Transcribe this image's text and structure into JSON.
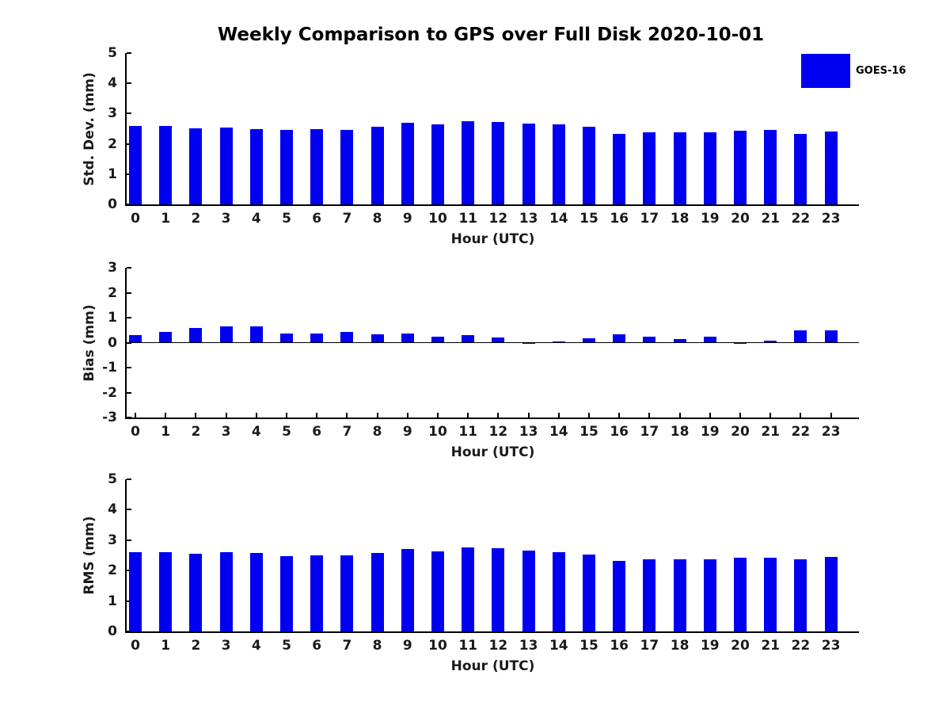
{
  "title": "Weekly Comparison to GPS over Full Disk 2020-10-01",
  "legend": {
    "label": "GOES-16",
    "position": "top-right",
    "color": "#0000f0"
  },
  "colors": {
    "bar": "#0000f0",
    "axis": "#000000",
    "text": "#1a1a1a",
    "background": "#ffffff"
  },
  "chart_data": [
    {
      "type": "bar",
      "name": "std-dev",
      "series_name": "GOES-16",
      "categories": [
        0,
        1,
        2,
        3,
        4,
        5,
        6,
        7,
        8,
        9,
        10,
        11,
        12,
        13,
        14,
        15,
        16,
        17,
        18,
        19,
        20,
        21,
        22,
        23
      ],
      "values": [
        2.59,
        2.6,
        2.52,
        2.55,
        2.5,
        2.46,
        2.5,
        2.46,
        2.57,
        2.7,
        2.64,
        2.76,
        2.73,
        2.67,
        2.64,
        2.56,
        2.33,
        2.38,
        2.37,
        2.37,
        2.43,
        2.47,
        2.32,
        2.42
      ],
      "xlabel": "Hour (UTC)",
      "ylabel": "Std. Dev. (mm)",
      "ylim": [
        0,
        5
      ],
      "yticks": [
        0,
        1,
        2,
        3,
        4,
        5
      ],
      "grid": false
    },
    {
      "type": "bar",
      "name": "bias",
      "series_name": "GOES-16",
      "categories": [
        0,
        1,
        2,
        3,
        4,
        5,
        6,
        7,
        8,
        9,
        10,
        11,
        12,
        13,
        14,
        15,
        16,
        17,
        18,
        19,
        20,
        21,
        22,
        23
      ],
      "values": [
        0.29,
        0.42,
        0.6,
        0.66,
        0.66,
        0.38,
        0.35,
        0.42,
        0.33,
        0.36,
        0.23,
        0.31,
        0.2,
        -0.05,
        0.05,
        0.16,
        0.32,
        0.25,
        0.13,
        0.25,
        -0.06,
        0.08,
        0.49,
        0.48
      ],
      "xlabel": "Hour (UTC)",
      "ylabel": "Bias (mm)",
      "ylim": [
        -3,
        3
      ],
      "yticks": [
        3,
        2,
        1,
        0,
        -1,
        -2,
        -3
      ],
      "grid": false
    },
    {
      "type": "bar",
      "name": "rms",
      "series_name": "GOES-16",
      "categories": [
        0,
        1,
        2,
        3,
        4,
        5,
        6,
        7,
        8,
        9,
        10,
        11,
        12,
        13,
        14,
        15,
        16,
        17,
        18,
        19,
        20,
        21,
        22,
        23
      ],
      "values": [
        2.61,
        2.61,
        2.55,
        2.61,
        2.57,
        2.47,
        2.5,
        2.5,
        2.57,
        2.71,
        2.64,
        2.76,
        2.73,
        2.66,
        2.61,
        2.53,
        2.33,
        2.38,
        2.38,
        2.38,
        2.43,
        2.43,
        2.38,
        2.46
      ],
      "xlabel": "Hour (UTC)",
      "ylabel": "RMS (mm)",
      "ylim": [
        0,
        5
      ],
      "yticks": [
        0,
        1,
        2,
        3,
        4,
        5
      ],
      "grid": false
    }
  ]
}
